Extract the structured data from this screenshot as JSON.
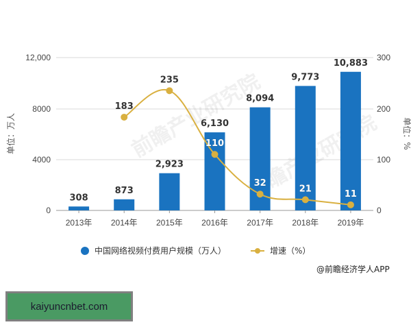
{
  "chart_data": {
    "type": "bar+line",
    "title": "",
    "categories": [
      "2013年",
      "2014年",
      "2015年",
      "2016年",
      "2017年",
      "2018年",
      "2019年"
    ],
    "series": [
      {
        "name": "中国网络视频付费用户规模（万人）",
        "type": "bar",
        "axis": "left",
        "color": "#1a73c0",
        "values": [
          308,
          873,
          2923,
          6130,
          8094,
          9773,
          10883
        ],
        "labels": [
          "308",
          "873",
          "2,923",
          "6,130",
          "8,094",
          "9,773",
          "10,883"
        ]
      },
      {
        "name": "增速（%）",
        "type": "line",
        "axis": "right",
        "color": "#d9b040",
        "values": [
          null,
          183,
          235,
          110,
          32,
          21,
          11
        ],
        "labels": [
          "",
          "183",
          "235",
          "110",
          "32",
          "21",
          "11"
        ]
      }
    ],
    "ylabel": "单位：万人",
    "ylabel_right": "单位：%",
    "ylim": [
      0,
      12000
    ],
    "ylim_right": [
      0,
      300
    ],
    "yticks": [
      "0",
      "4000",
      "8000",
      "12,000"
    ],
    "yticks_right": [
      "0",
      "100",
      "200",
      "300"
    ],
    "grid": true,
    "legend_position": "bottom"
  },
  "legend": {
    "bar_label": "中国网络视频付费用户规模（万人）",
    "line_label": "增速（%）"
  },
  "source": "@前瞻经济学人APP",
  "watermark": "前瞻产业研究院",
  "badge": {
    "text": "kaiyuncnbet.com"
  }
}
